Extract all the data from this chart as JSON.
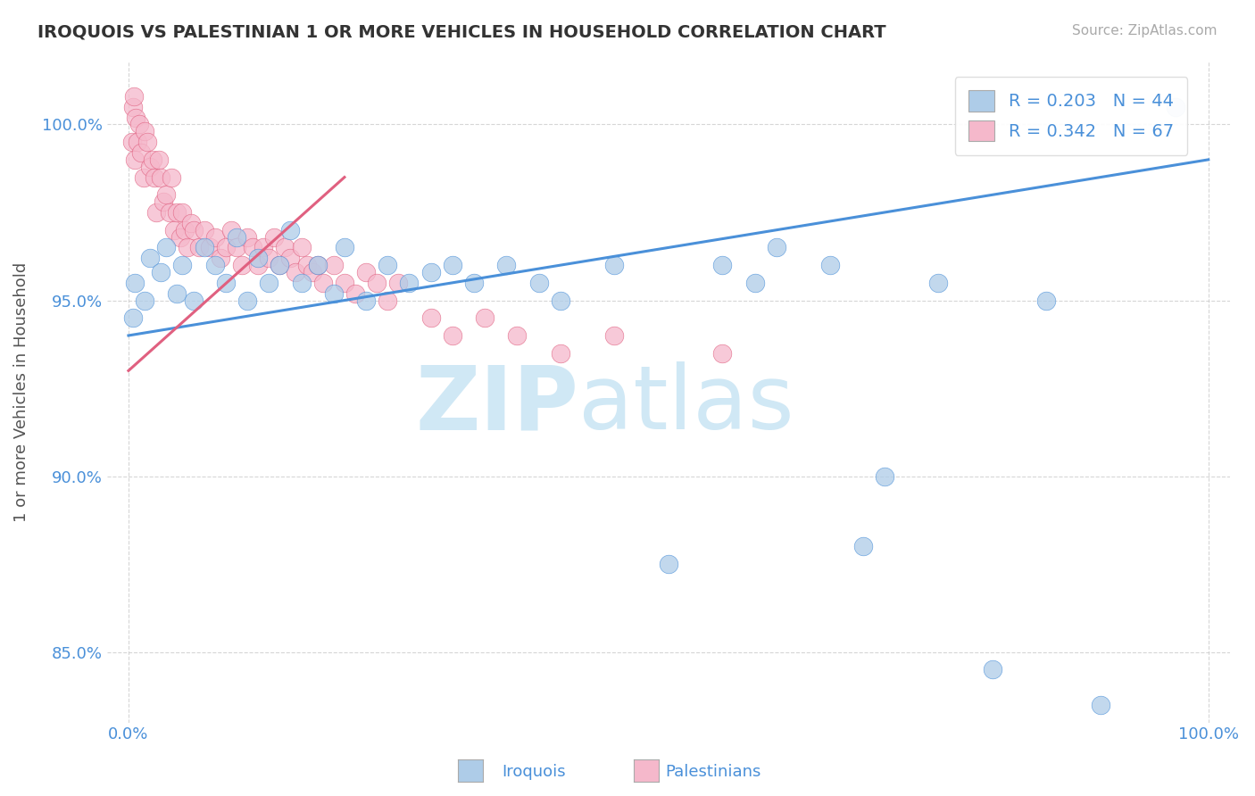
{
  "title": "IROQUOIS VS PALESTINIAN 1 OR MORE VEHICLES IN HOUSEHOLD CORRELATION CHART",
  "source_text": "Source: ZipAtlas.com",
  "ylabel": "1 or more Vehicles in Household",
  "xlim": [
    -2.0,
    102.0
  ],
  "ylim": [
    83.0,
    101.8
  ],
  "yticks": [
    85.0,
    90.0,
    95.0,
    100.0
  ],
  "ytick_labels": [
    "85.0%",
    "90.0%",
    "95.0%",
    "100.0%"
  ],
  "xticks": [
    0.0,
    100.0
  ],
  "xtick_labels": [
    "0.0%",
    "100.0%"
  ],
  "legend_r1": "R = 0.203",
  "legend_n1": "N = 44",
  "legend_r2": "R = 0.342",
  "legend_n2": "N = 67",
  "blue_color": "#aecce8",
  "pink_color": "#f5b8cb",
  "blue_line_color": "#4a90d9",
  "pink_line_color": "#e06080",
  "watermark_color": "#d0e8f5",
  "background_color": "#ffffff",
  "iroquois_x": [
    0.4,
    0.6,
    1.5,
    2.0,
    3.0,
    3.5,
    4.5,
    5.0,
    6.0,
    7.0,
    8.0,
    9.0,
    10.0,
    11.0,
    12.0,
    13.0,
    14.0,
    15.0,
    16.0,
    17.5,
    19.0,
    20.0,
    22.0,
    24.0,
    26.0,
    28.0,
    30.0,
    32.0,
    35.0,
    38.0,
    40.0,
    45.0,
    50.0,
    55.0,
    58.0,
    60.0,
    65.0,
    68.0,
    70.0,
    75.0,
    80.0,
    85.0,
    90.0,
    97.0
  ],
  "iroquois_y": [
    94.5,
    95.5,
    95.0,
    96.2,
    95.8,
    96.5,
    95.2,
    96.0,
    95.0,
    96.5,
    96.0,
    95.5,
    96.8,
    95.0,
    96.2,
    95.5,
    96.0,
    97.0,
    95.5,
    96.0,
    95.2,
    96.5,
    95.0,
    96.0,
    95.5,
    95.8,
    96.0,
    95.5,
    96.0,
    95.5,
    95.0,
    96.0,
    87.5,
    96.0,
    95.5,
    96.5,
    96.0,
    88.0,
    90.0,
    95.5,
    84.5,
    95.0,
    83.5,
    100.5
  ],
  "palestinians_x": [
    0.3,
    0.4,
    0.5,
    0.6,
    0.7,
    0.8,
    1.0,
    1.2,
    1.4,
    1.5,
    1.7,
    2.0,
    2.2,
    2.4,
    2.6,
    2.8,
    3.0,
    3.2,
    3.5,
    3.8,
    4.0,
    4.2,
    4.5,
    4.8,
    5.0,
    5.2,
    5.5,
    5.8,
    6.0,
    6.5,
    7.0,
    7.5,
    8.0,
    8.5,
    9.0,
    9.5,
    10.0,
    10.5,
    11.0,
    11.5,
    12.0,
    12.5,
    13.0,
    13.5,
    14.0,
    14.5,
    15.0,
    15.5,
    16.0,
    16.5,
    17.0,
    17.5,
    18.0,
    19.0,
    20.0,
    21.0,
    22.0,
    23.0,
    24.0,
    25.0,
    28.0,
    30.0,
    33.0,
    36.0,
    40.0,
    45.0,
    55.0
  ],
  "palestinians_y": [
    99.5,
    100.5,
    100.8,
    99.0,
    100.2,
    99.5,
    100.0,
    99.2,
    98.5,
    99.8,
    99.5,
    98.8,
    99.0,
    98.5,
    97.5,
    99.0,
    98.5,
    97.8,
    98.0,
    97.5,
    98.5,
    97.0,
    97.5,
    96.8,
    97.5,
    97.0,
    96.5,
    97.2,
    97.0,
    96.5,
    97.0,
    96.5,
    96.8,
    96.2,
    96.5,
    97.0,
    96.5,
    96.0,
    96.8,
    96.5,
    96.0,
    96.5,
    96.2,
    96.8,
    96.0,
    96.5,
    96.2,
    95.8,
    96.5,
    96.0,
    95.8,
    96.0,
    95.5,
    96.0,
    95.5,
    95.2,
    95.8,
    95.5,
    95.0,
    95.5,
    94.5,
    94.0,
    94.5,
    94.0,
    93.5,
    94.0,
    93.5
  ],
  "blue_line_x": [
    0.0,
    100.0
  ],
  "blue_line_y_start": 94.0,
  "blue_line_y_end": 99.0,
  "pink_line_x": [
    0.0,
    20.0
  ],
  "pink_line_y_start": 93.0,
  "pink_line_y_end": 98.5
}
